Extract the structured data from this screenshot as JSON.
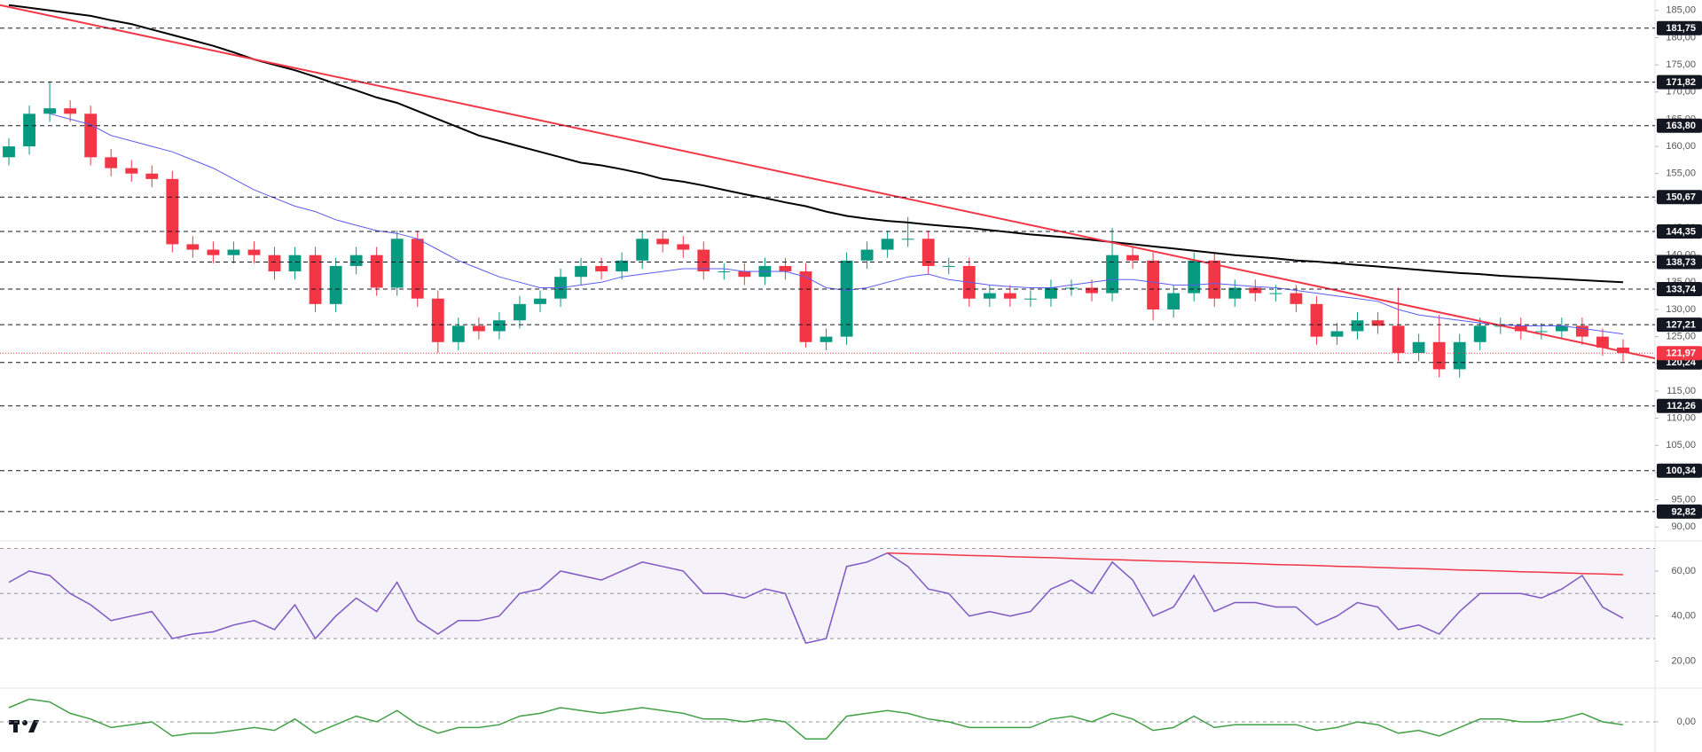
{
  "chart_data": [
    {
      "type": "candlestick",
      "categories": [
        null,
        null,
        null,
        null,
        null,
        null,
        null,
        null,
        null,
        null,
        null,
        null,
        null,
        null,
        null,
        null,
        null,
        null,
        null,
        null,
        null,
        null,
        null,
        null,
        null,
        null,
        null,
        null,
        null,
        null,
        null,
        null,
        null,
        null,
        null,
        null,
        null,
        null,
        null,
        null,
        null,
        null,
        null,
        null,
        null,
        null,
        null,
        null,
        null,
        null,
        null,
        null,
        null,
        null,
        null,
        null,
        null,
        null,
        null,
        null,
        null,
        null,
        null,
        null,
        null,
        null,
        null,
        null,
        null,
        null,
        null,
        null,
        null,
        null,
        null,
        null,
        null,
        null,
        null,
        null
      ],
      "open": [
        158,
        160,
        166,
        167,
        166,
        158,
        156,
        155,
        154,
        142,
        141,
        140,
        141,
        140,
        137,
        140,
        131,
        138,
        140,
        134,
        143,
        132,
        124,
        127,
        126,
        128,
        131,
        132,
        136,
        138,
        137,
        139,
        143,
        142,
        141,
        137,
        137,
        136,
        138,
        137,
        124,
        125,
        139,
        141,
        143,
        143,
        138,
        138,
        132,
        133,
        132,
        132,
        134,
        134,
        133,
        140,
        139,
        130,
        133,
        139,
        132,
        134,
        133,
        133,
        131,
        125,
        126,
        128,
        127,
        122,
        124,
        119,
        124,
        127,
        127,
        126,
        126,
        127,
        125,
        123
      ],
      "high": [
        161.5,
        167.5,
        172,
        168.5,
        167.5,
        159.5,
        157.5,
        156.5,
        155.5,
        143.5,
        142.5,
        142.5,
        142.5,
        141.5,
        141.5,
        141.5,
        139.5,
        141.5,
        141.5,
        144.5,
        144.5,
        133.5,
        128.5,
        128.5,
        129.5,
        132.5,
        133.5,
        137.5,
        139.5,
        139.5,
        140.5,
        144.5,
        144.5,
        143.5,
        142.5,
        138.5,
        138.5,
        139.5,
        139.5,
        138.5,
        126.5,
        140.5,
        142.5,
        144.5,
        147,
        144.5,
        139.5,
        139.5,
        134.5,
        134.5,
        133.5,
        135.5,
        135.5,
        135.5,
        145,
        141.5,
        140.5,
        134.5,
        140.5,
        140.5,
        135.5,
        135.5,
        134.5,
        134.5,
        132.5,
        127.5,
        129.5,
        129.5,
        134,
        125.5,
        129,
        125.5,
        128.5,
        128.5,
        128.5,
        127.5,
        128.5,
        128.5,
        126.5,
        124.5
      ],
      "low": [
        156.5,
        158.5,
        164.5,
        164.5,
        156.5,
        154.5,
        153.5,
        152.5,
        140.5,
        139.5,
        138.5,
        138.5,
        138.5,
        135.5,
        135.5,
        129.5,
        129.5,
        136.5,
        132.5,
        132.5,
        130.5,
        122,
        122.5,
        124.5,
        124.5,
        126.5,
        129.5,
        130.5,
        134.5,
        135.5,
        135.5,
        137.5,
        140.5,
        139.5,
        135.5,
        135.5,
        134.5,
        134.5,
        135.5,
        123,
        122.5,
        123.5,
        137.5,
        139.5,
        141.5,
        136.5,
        136.5,
        130.5,
        130.5,
        130.5,
        130.5,
        130.5,
        132.5,
        131.5,
        131.5,
        137.5,
        128,
        128.5,
        131.5,
        130.5,
        130.5,
        131.5,
        131.5,
        129.5,
        123.5,
        123.5,
        124.5,
        125.5,
        120.5,
        120.5,
        117.5,
        117.5,
        122.5,
        125.5,
        124.5,
        124.5,
        124.5,
        123.5,
        121.5,
        120.5
      ],
      "close": [
        160,
        166,
        167,
        166,
        158,
        156,
        155,
        154,
        142,
        141,
        140,
        141,
        140,
        137,
        140,
        131,
        138,
        140,
        134,
        143,
        132,
        124,
        127,
        126,
        128,
        131,
        132,
        136,
        138,
        137,
        139,
        143,
        142,
        141,
        137,
        137,
        136,
        138,
        137,
        124,
        125,
        139,
        141,
        143,
        143,
        138,
        138,
        132,
        133,
        132,
        132,
        134,
        134,
        133,
        140,
        139,
        130,
        133,
        139,
        132,
        134,
        133,
        133,
        131,
        125,
        126,
        128,
        127,
        122,
        124,
        119,
        124,
        127,
        127,
        126,
        126,
        127,
        125,
        123,
        122
      ],
      "up_color": "#089981",
      "down_color": "#f23645",
      "lines": [
        {
          "color": "#000000",
          "values": [
            186,
            185.5,
            185,
            184.5,
            184,
            183.2,
            182.5,
            181.5,
            180.5,
            179.5,
            178.5,
            177.3,
            176,
            175,
            174,
            172.8,
            171.5,
            170.3,
            169,
            168,
            166.5,
            165,
            163.5,
            162,
            161,
            160,
            159,
            158,
            157,
            156.5,
            155.8,
            155,
            154,
            153.5,
            152.8,
            152,
            151.2,
            150.5,
            149.7,
            149,
            148,
            147.2,
            146.7,
            146.3,
            146,
            145.6,
            145.3,
            145,
            144.6,
            144.2,
            143.8,
            143.5,
            143.2,
            142.8,
            142.4,
            142,
            141.6,
            141.2,
            140.8,
            140.4,
            140,
            139.7,
            139.4,
            139,
            138.8,
            138.5,
            138.2,
            137.9,
            137.6,
            137.3,
            137,
            136.7,
            136.5,
            136.2,
            136,
            135.8,
            135.6,
            135.4,
            135.2,
            135
          ]
        },
        {
          "color": "#5b5bf0",
          "values": [
            null,
            null,
            166,
            165,
            164,
            162,
            161,
            160,
            159,
            157.5,
            156,
            154,
            152,
            150.5,
            149,
            148,
            146.5,
            145.5,
            144.5,
            144,
            143,
            141,
            139,
            137.5,
            136,
            135,
            134,
            134,
            134.5,
            135,
            136,
            136.5,
            137,
            137.5,
            137.5,
            137.5,
            137,
            137,
            137,
            136,
            134,
            133.5,
            134,
            135,
            136,
            136.5,
            135.5,
            135,
            134.5,
            134.2,
            134,
            134,
            134.5,
            135,
            135.5,
            135.5,
            135,
            134.5,
            134.5,
            134.8,
            134.5,
            134.2,
            134,
            133.5,
            133,
            132.5,
            132,
            131.5,
            130,
            129,
            128.5,
            128,
            127.5,
            127.2,
            127,
            127,
            127,
            126.5,
            126,
            125.5
          ]
        }
      ],
      "trendline": {
        "color": "#f23645",
        "start": 186,
        "end": 121
      },
      "ylim": [
        88.4,
        186.6
      ],
      "yticks": [
        {
          "value": 90,
          "label": "90,00"
        },
        {
          "value": 95,
          "label": "95,00"
        },
        {
          "value": 100,
          "label": "100,00"
        },
        {
          "value": 105,
          "label": "105,00"
        },
        {
          "value": 110,
          "label": "110,00"
        },
        {
          "value": 115,
          "label": "115,00"
        },
        {
          "value": 120,
          "label": "120,00"
        },
        {
          "value": 125,
          "label": "125,00"
        },
        {
          "value": 130,
          "label": "130,00"
        },
        {
          "value": 135,
          "label": "135,00"
        },
        {
          "value": 140,
          "label": "140,00"
        },
        {
          "value": 145,
          "label": "145,00"
        },
        {
          "value": 150,
          "label": "150,00"
        },
        {
          "value": 155,
          "label": "155,00"
        },
        {
          "value": 160,
          "label": "160,00"
        },
        {
          "value": 165,
          "label": "165,00"
        },
        {
          "value": 170,
          "label": "170,00"
        },
        {
          "value": 175,
          "label": "175,00"
        },
        {
          "value": 180,
          "label": "180,00"
        },
        {
          "value": 185,
          "label": "185,00"
        }
      ],
      "levels": [
        {
          "value": 181.75,
          "label": "181,75"
        },
        {
          "value": 171.82,
          "label": "171,82"
        },
        {
          "value": 163.8,
          "label": "163,80"
        },
        {
          "value": 150.67,
          "label": "150,67"
        },
        {
          "value": 144.35,
          "label": "144,35"
        },
        {
          "value": 138.73,
          "label": "138,73"
        },
        {
          "value": 133.74,
          "label": "133,74"
        },
        {
          "value": 127.21,
          "label": "127,21"
        },
        {
          "value": 120.24,
          "label": "120,24"
        },
        {
          "value": 112.26,
          "label": "112,26"
        },
        {
          "value": 100.34,
          "label": "100,34"
        },
        {
          "value": 92.82,
          "label": "92,82"
        }
      ],
      "last_price": {
        "value": 121.97,
        "label": "121,97",
        "color": "#f23645"
      }
    },
    {
      "type": "line",
      "series": [
        {
          "color": "#7e57c2",
          "values": [
            55,
            60,
            58,
            50,
            45,
            38,
            40,
            42,
            30,
            32,
            33,
            36,
            38,
            34,
            45,
            30,
            40,
            48,
            42,
            55,
            38,
            32,
            38,
            38,
            40,
            50,
            52,
            60,
            58,
            56,
            60,
            64,
            62,
            60,
            50,
            50,
            48,
            52,
            50,
            28,
            30,
            62,
            64,
            68,
            62,
            52,
            50,
            40,
            42,
            40,
            42,
            52,
            56,
            50,
            64,
            56,
            40,
            44,
            58,
            42,
            46,
            46,
            44,
            44,
            36,
            40,
            46,
            44,
            34,
            36,
            32,
            42,
            50,
            50,
            50,
            48,
            52,
            58,
            44,
            39
          ]
        }
      ],
      "trend": {
        "color": "#f23645",
        "values": [
          null,
          null,
          null,
          null,
          null,
          null,
          null,
          null,
          null,
          null,
          null,
          null,
          null,
          null,
          null,
          null,
          null,
          null,
          null,
          null,
          null,
          null,
          null,
          null,
          null,
          null,
          null,
          null,
          null,
          null,
          null,
          null,
          null,
          null,
          null,
          null,
          null,
          null,
          null,
          null,
          null,
          null,
          null,
          68,
          67.7,
          67.5,
          67.2,
          66.9,
          66.7,
          66.4,
          66.1,
          65.9,
          65.6,
          65.3,
          65.1,
          64.8,
          64.5,
          64.3,
          64,
          63.7,
          63.5,
          63.2,
          62.9,
          62.7,
          62.4,
          62.1,
          61.9,
          61.6,
          61.3,
          61.1,
          60.8,
          60.5,
          60.3,
          60,
          59.7,
          59.5,
          59.2,
          58.9,
          58.7,
          58.4
        ]
      },
      "ylim": [
        19,
        71
      ],
      "yticks": [
        {
          "value": 20,
          "label": "20,00"
        },
        {
          "value": 40,
          "label": "40,00"
        },
        {
          "value": 60,
          "label": "60,00"
        }
      ],
      "levels": [
        70,
        50,
        30
      ],
      "band": {
        "range": [
          30,
          70
        ],
        "color": "#7e57c2"
      }
    },
    {
      "type": "line",
      "series": [
        {
          "color": "#43a047",
          "values": [
            5,
            8,
            7,
            3,
            1,
            -2,
            -1,
            0,
            -5,
            -4,
            -4,
            -3,
            -2,
            -3,
            1,
            -4,
            -1,
            2,
            0,
            4,
            -1,
            -4,
            -2,
            -2,
            -1,
            2,
            3,
            5,
            4,
            3,
            4,
            5,
            4,
            3,
            1,
            1,
            0,
            1,
            0,
            -6,
            -6,
            2,
            3,
            4,
            3,
            1,
            0,
            -2,
            -2,
            -2,
            -2,
            1,
            2,
            0,
            3,
            1,
            -3,
            -2,
            2,
            -2,
            -1,
            -1,
            -1,
            -1,
            -3,
            -2,
            0,
            -1,
            -4,
            -3,
            -5,
            -2,
            1,
            1,
            0,
            0,
            1,
            3,
            0,
            -1
          ]
        }
      ],
      "ylim": [
        -10,
        10
      ],
      "yticks": [
        {
          "value": 0,
          "label": "0,00"
        }
      ],
      "levels": [
        0
      ]
    }
  ]
}
